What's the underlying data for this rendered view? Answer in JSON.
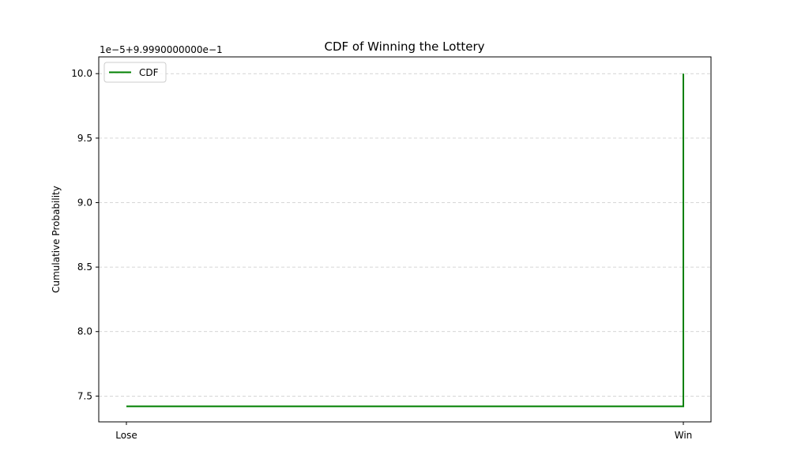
{
  "chart_data": {
    "type": "line",
    "drawstyle": "steps-post",
    "title": "CDF of Winning the Lottery",
    "xlabel": "",
    "ylabel": "Cumulative Probability",
    "y_offset_label": "1e−5+9.9990000000e−1",
    "categories": [
      "Lose",
      "Win"
    ],
    "ylim": [
      7.3,
      10.13
    ],
    "yticks": [
      7.5,
      8.0,
      8.5,
      9.0,
      9.5,
      10.0
    ],
    "ytick_labels": [
      "7.5",
      "8.0",
      "8.5",
      "9.0",
      "9.5",
      "10.0"
    ],
    "grid": "y-dashed",
    "legend_position": "top-left",
    "series": [
      {
        "name": "CDF",
        "color": "#008000",
        "x": [
          "Lose",
          "Win"
        ],
        "values": [
          7.42,
          10.0
        ]
      }
    ]
  }
}
